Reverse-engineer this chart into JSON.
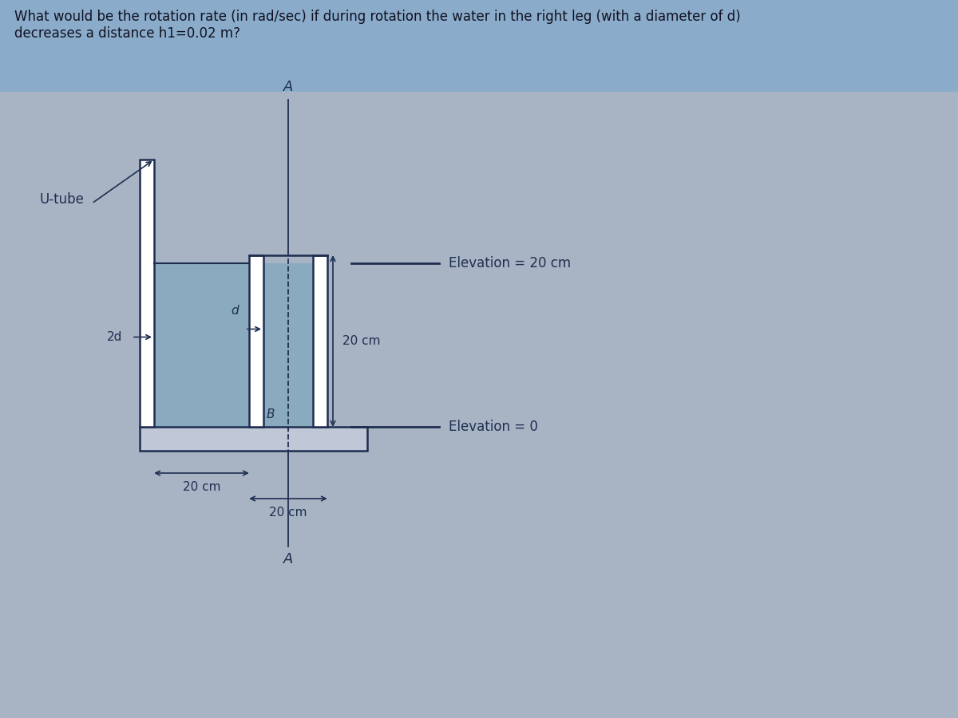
{
  "title_text": "What would be the rotation rate (in rad/sec) if during rotation the water in the right leg (with a diameter of d)\ndecreases a distance h1=0.02 m?",
  "title_fontsize": 12,
  "title_bg_color": "#8aacca",
  "title_text_color": "#111122",
  "background_color": "#a8b4c4",
  "tube_outline_color": "#1e2e50",
  "tube_fill_color": "#8aaac0",
  "water_fill_left": "#8aaac0",
  "water_fill_right": "#8aaac0",
  "bottom_bar_fill": "#c0c8d8",
  "elevation_line_color": "#1e2e50",
  "annotation_color": "#1e2e50",
  "u_tube_label": "U-tube",
  "elevation_20_label": "Elevation = 20 cm",
  "elevation_0_label": "Elevation = 0",
  "label_2d": "2d",
  "label_d": "d",
  "dim_20cm_horiz": "20 cm",
  "dim_20cm_vert": "20 cm",
  "dim_20cm_bottom": "20 cm",
  "label_A_top": "A",
  "label_A_bottom": "A",
  "label_B": "B"
}
